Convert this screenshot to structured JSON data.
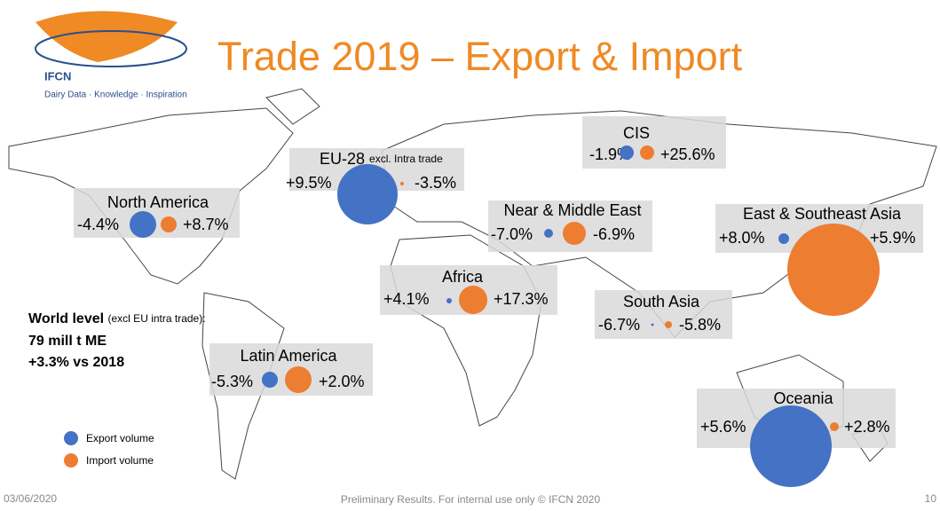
{
  "logo": {
    "name": "IFCN",
    "tagline": "Dairy Data · Knowledge · Inspiration"
  },
  "title": "Trade 2019 – Export & Import",
  "regions": [
    {
      "name": "North America",
      "export": "-4.4%",
      "import": "+8.7%"
    },
    {
      "name": "EU-28",
      "note": "excl. Intra trade",
      "export": "+9.5%",
      "import": "-3.5%"
    },
    {
      "name": "CIS",
      "export": "-1.9%",
      "import": "+25.6%"
    },
    {
      "name": "Near & Middle East",
      "export": "-7.0%",
      "import": "-6.9%"
    },
    {
      "name": "East & Southeast Asia",
      "export": "+8.0%",
      "import": "+5.9%"
    },
    {
      "name": "Africa",
      "export": "+4.1%",
      "import": "+17.3%"
    },
    {
      "name": "South Asia",
      "export": "-6.7%",
      "import": "-5.8%"
    },
    {
      "name": "Latin America",
      "export": "-5.3%",
      "import": "+2.0%"
    },
    {
      "name": "Oceania",
      "export": "+5.6%",
      "import": "+2.8%"
    }
  ],
  "world": {
    "heading": "World level",
    "note": "(excl EU intra trade):",
    "volume": "79 mill t ME",
    "change": "+3.3% vs 2018"
  },
  "legend": {
    "export": "Export volume",
    "import": "Import volume"
  },
  "footer": {
    "date": "03/06/2020",
    "note": "Preliminary Results. For internal use only © IFCN 2020",
    "page": "10"
  }
}
